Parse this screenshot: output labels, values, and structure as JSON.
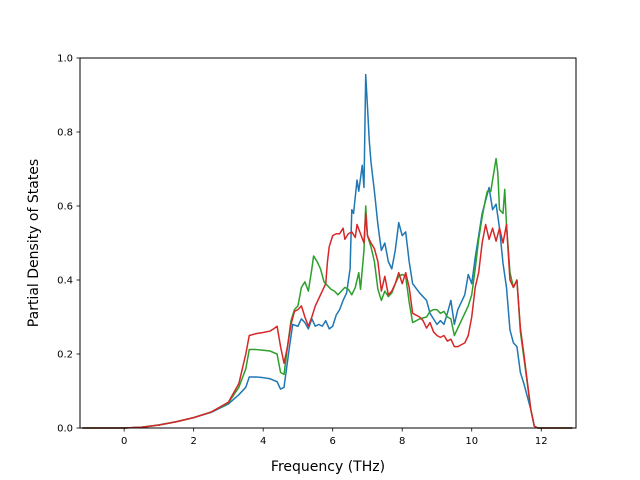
{
  "chart_data": {
    "type": "line",
    "title": "",
    "xlabel": "Frequency (THz)",
    "ylabel": "Partial Density of States",
    "xlim": [
      -1.27,
      13.0
    ],
    "ylim": [
      0.0,
      1.0
    ],
    "xticks": [
      0,
      2,
      4,
      6,
      8,
      10,
      12
    ],
    "yticks": [
      0.0,
      0.2,
      0.4,
      0.6,
      0.8,
      1.0
    ],
    "xtick_labels": [
      "0",
      "2",
      "4",
      "6",
      "8",
      "10",
      "12"
    ],
    "ytick_labels": [
      "0.0",
      "0.2",
      "0.4",
      "0.6",
      "0.8",
      "1.0"
    ],
    "grid": false,
    "legend": "none",
    "series": [
      {
        "color": "#1f77b4",
        "points": [
          [
            -1.2,
            0
          ],
          [
            -0.5,
            0
          ],
          [
            0,
            0
          ],
          [
            0.5,
            0.002
          ],
          [
            1,
            0.008
          ],
          [
            1.5,
            0.017
          ],
          [
            2,
            0.028
          ],
          [
            2.5,
            0.042
          ],
          [
            3,
            0.065
          ],
          [
            3.3,
            0.09
          ],
          [
            3.5,
            0.11
          ],
          [
            3.6,
            0.138
          ],
          [
            3.8,
            0.138
          ],
          [
            4,
            0.136
          ],
          [
            4.2,
            0.133
          ],
          [
            4.4,
            0.125
          ],
          [
            4.5,
            0.105
          ],
          [
            4.6,
            0.11
          ],
          [
            4.75,
            0.215
          ],
          [
            4.85,
            0.28
          ],
          [
            5.0,
            0.275
          ],
          [
            5.1,
            0.295
          ],
          [
            5.2,
            0.285
          ],
          [
            5.3,
            0.268
          ],
          [
            5.4,
            0.295
          ],
          [
            5.5,
            0.275
          ],
          [
            5.6,
            0.28
          ],
          [
            5.7,
            0.275
          ],
          [
            5.8,
            0.29
          ],
          [
            5.9,
            0.268
          ],
          [
            6.0,
            0.275
          ],
          [
            6.1,
            0.305
          ],
          [
            6.2,
            0.32
          ],
          [
            6.3,
            0.345
          ],
          [
            6.4,
            0.365
          ],
          [
            6.5,
            0.43
          ],
          [
            6.55,
            0.59
          ],
          [
            6.6,
            0.58
          ],
          [
            6.7,
            0.67
          ],
          [
            6.75,
            0.64
          ],
          [
            6.85,
            0.71
          ],
          [
            6.9,
            0.65
          ],
          [
            6.95,
            0.955
          ],
          [
            7.0,
            0.87
          ],
          [
            7.05,
            0.78
          ],
          [
            7.1,
            0.72
          ],
          [
            7.2,
            0.64
          ],
          [
            7.3,
            0.55
          ],
          [
            7.4,
            0.48
          ],
          [
            7.5,
            0.5
          ],
          [
            7.6,
            0.45
          ],
          [
            7.7,
            0.43
          ],
          [
            7.8,
            0.48
          ],
          [
            7.9,
            0.555
          ],
          [
            8.0,
            0.52
          ],
          [
            8.1,
            0.53
          ],
          [
            8.2,
            0.45
          ],
          [
            8.3,
            0.39
          ],
          [
            8.5,
            0.365
          ],
          [
            8.7,
            0.345
          ],
          [
            8.8,
            0.31
          ],
          [
            8.9,
            0.295
          ],
          [
            9.0,
            0.28
          ],
          [
            9.1,
            0.29
          ],
          [
            9.2,
            0.28
          ],
          [
            9.3,
            0.31
          ],
          [
            9.4,
            0.345
          ],
          [
            9.5,
            0.28
          ],
          [
            9.6,
            0.32
          ],
          [
            9.7,
            0.34
          ],
          [
            9.8,
            0.36
          ],
          [
            9.9,
            0.415
          ],
          [
            10.0,
            0.39
          ],
          [
            10.1,
            0.46
          ],
          [
            10.2,
            0.52
          ],
          [
            10.3,
            0.58
          ],
          [
            10.4,
            0.615
          ],
          [
            10.5,
            0.65
          ],
          [
            10.6,
            0.59
          ],
          [
            10.7,
            0.605
          ],
          [
            10.8,
            0.54
          ],
          [
            10.9,
            0.445
          ],
          [
            11.0,
            0.38
          ],
          [
            11.1,
            0.265
          ],
          [
            11.2,
            0.23
          ],
          [
            11.3,
            0.22
          ],
          [
            11.4,
            0.15
          ],
          [
            11.5,
            0.12
          ],
          [
            11.7,
            0.05
          ],
          [
            11.8,
            0.005
          ],
          [
            11.9,
            0
          ],
          [
            12.5,
            0
          ],
          [
            12.9,
            0
          ]
        ]
      },
      {
        "color": "#2ca02c",
        "points": [
          [
            -1.2,
            0
          ],
          [
            -0.5,
            0
          ],
          [
            0,
            0
          ],
          [
            0.5,
            0.002
          ],
          [
            1,
            0.008
          ],
          [
            1.5,
            0.017
          ],
          [
            2,
            0.028
          ],
          [
            2.5,
            0.043
          ],
          [
            3,
            0.068
          ],
          [
            3.3,
            0.11
          ],
          [
            3.5,
            0.16
          ],
          [
            3.6,
            0.212
          ],
          [
            3.8,
            0.212
          ],
          [
            4,
            0.21
          ],
          [
            4.2,
            0.208
          ],
          [
            4.4,
            0.2
          ],
          [
            4.5,
            0.15
          ],
          [
            4.6,
            0.145
          ],
          [
            4.7,
            0.22
          ],
          [
            4.8,
            0.29
          ],
          [
            4.9,
            0.32
          ],
          [
            5.0,
            0.33
          ],
          [
            5.1,
            0.38
          ],
          [
            5.2,
            0.395
          ],
          [
            5.3,
            0.37
          ],
          [
            5.4,
            0.43
          ],
          [
            5.45,
            0.465
          ],
          [
            5.55,
            0.45
          ],
          [
            5.65,
            0.43
          ],
          [
            5.75,
            0.395
          ],
          [
            5.85,
            0.385
          ],
          [
            5.95,
            0.375
          ],
          [
            6.05,
            0.37
          ],
          [
            6.15,
            0.36
          ],
          [
            6.25,
            0.37
          ],
          [
            6.35,
            0.38
          ],
          [
            6.45,
            0.375
          ],
          [
            6.55,
            0.36
          ],
          [
            6.65,
            0.38
          ],
          [
            6.75,
            0.42
          ],
          [
            6.8,
            0.375
          ],
          [
            6.9,
            0.48
          ],
          [
            6.95,
            0.6
          ],
          [
            7.0,
            0.52
          ],
          [
            7.1,
            0.49
          ],
          [
            7.2,
            0.45
          ],
          [
            7.3,
            0.375
          ],
          [
            7.4,
            0.345
          ],
          [
            7.5,
            0.37
          ],
          [
            7.6,
            0.355
          ],
          [
            7.7,
            0.365
          ],
          [
            7.8,
            0.39
          ],
          [
            7.9,
            0.41
          ],
          [
            8.0,
            0.415
          ],
          [
            8.1,
            0.41
          ],
          [
            8.2,
            0.34
          ],
          [
            8.3,
            0.285
          ],
          [
            8.5,
            0.295
          ],
          [
            8.7,
            0.3
          ],
          [
            8.8,
            0.315
          ],
          [
            8.9,
            0.32
          ],
          [
            9.0,
            0.32
          ],
          [
            9.1,
            0.31
          ],
          [
            9.2,
            0.315
          ],
          [
            9.3,
            0.3
          ],
          [
            9.4,
            0.295
          ],
          [
            9.5,
            0.25
          ],
          [
            9.6,
            0.27
          ],
          [
            9.7,
            0.29
          ],
          [
            9.8,
            0.31
          ],
          [
            9.9,
            0.33
          ],
          [
            10.0,
            0.36
          ],
          [
            10.1,
            0.43
          ],
          [
            10.2,
            0.51
          ],
          [
            10.3,
            0.57
          ],
          [
            10.4,
            0.62
          ],
          [
            10.45,
            0.64
          ],
          [
            10.55,
            0.64
          ],
          [
            10.6,
            0.67
          ],
          [
            10.7,
            0.728
          ],
          [
            10.75,
            0.69
          ],
          [
            10.8,
            0.59
          ],
          [
            10.9,
            0.58
          ],
          [
            10.95,
            0.645
          ],
          [
            11.0,
            0.55
          ],
          [
            11.1,
            0.42
          ],
          [
            11.2,
            0.38
          ],
          [
            11.3,
            0.4
          ],
          [
            11.4,
            0.26
          ],
          [
            11.5,
            0.19
          ],
          [
            11.7,
            0.05
          ],
          [
            11.8,
            0.005
          ],
          [
            11.9,
            0
          ],
          [
            12.5,
            0
          ],
          [
            12.9,
            0
          ]
        ]
      },
      {
        "color": "#d62728",
        "points": [
          [
            -1.2,
            0
          ],
          [
            -0.5,
            0
          ],
          [
            0,
            0
          ],
          [
            0.5,
            0.002
          ],
          [
            1,
            0.008
          ],
          [
            1.5,
            0.017
          ],
          [
            2,
            0.028
          ],
          [
            2.5,
            0.043
          ],
          [
            3,
            0.07
          ],
          [
            3.3,
            0.12
          ],
          [
            3.5,
            0.2
          ],
          [
            3.6,
            0.25
          ],
          [
            3.8,
            0.255
          ],
          [
            4,
            0.258
          ],
          [
            4.2,
            0.262
          ],
          [
            4.3,
            0.268
          ],
          [
            4.4,
            0.275
          ],
          [
            4.5,
            0.22
          ],
          [
            4.6,
            0.175
          ],
          [
            4.7,
            0.22
          ],
          [
            4.8,
            0.28
          ],
          [
            4.9,
            0.315
          ],
          [
            5.0,
            0.32
          ],
          [
            5.1,
            0.33
          ],
          [
            5.2,
            0.3
          ],
          [
            5.3,
            0.275
          ],
          [
            5.4,
            0.3
          ],
          [
            5.5,
            0.33
          ],
          [
            5.6,
            0.35
          ],
          [
            5.7,
            0.37
          ],
          [
            5.8,
            0.39
          ],
          [
            5.85,
            0.45
          ],
          [
            5.9,
            0.49
          ],
          [
            6.0,
            0.52
          ],
          [
            6.1,
            0.525
          ],
          [
            6.2,
            0.525
          ],
          [
            6.3,
            0.54
          ],
          [
            6.35,
            0.51
          ],
          [
            6.45,
            0.525
          ],
          [
            6.55,
            0.53
          ],
          [
            6.65,
            0.515
          ],
          [
            6.7,
            0.55
          ],
          [
            6.8,
            0.525
          ],
          [
            6.9,
            0.5
          ],
          [
            6.95,
            0.58
          ],
          [
            7.0,
            0.52
          ],
          [
            7.1,
            0.5
          ],
          [
            7.2,
            0.485
          ],
          [
            7.3,
            0.45
          ],
          [
            7.4,
            0.37
          ],
          [
            7.5,
            0.41
          ],
          [
            7.6,
            0.36
          ],
          [
            7.7,
            0.37
          ],
          [
            7.8,
            0.39
          ],
          [
            7.9,
            0.42
          ],
          [
            8.0,
            0.39
          ],
          [
            8.1,
            0.42
          ],
          [
            8.2,
            0.38
          ],
          [
            8.3,
            0.31
          ],
          [
            8.5,
            0.3
          ],
          [
            8.6,
            0.29
          ],
          [
            8.7,
            0.27
          ],
          [
            8.8,
            0.285
          ],
          [
            8.9,
            0.26
          ],
          [
            9.0,
            0.25
          ],
          [
            9.1,
            0.245
          ],
          [
            9.2,
            0.25
          ],
          [
            9.3,
            0.235
          ],
          [
            9.4,
            0.24
          ],
          [
            9.5,
            0.22
          ],
          [
            9.6,
            0.22
          ],
          [
            9.7,
            0.225
          ],
          [
            9.8,
            0.23
          ],
          [
            9.9,
            0.25
          ],
          [
            10.0,
            0.3
          ],
          [
            10.1,
            0.38
          ],
          [
            10.2,
            0.42
          ],
          [
            10.3,
            0.5
          ],
          [
            10.4,
            0.55
          ],
          [
            10.5,
            0.51
          ],
          [
            10.6,
            0.54
          ],
          [
            10.7,
            0.505
          ],
          [
            10.8,
            0.54
          ],
          [
            10.9,
            0.5
          ],
          [
            11.0,
            0.55
          ],
          [
            11.1,
            0.4
          ],
          [
            11.2,
            0.38
          ],
          [
            11.3,
            0.4
          ],
          [
            11.4,
            0.27
          ],
          [
            11.5,
            0.2
          ],
          [
            11.7,
            0.05
          ],
          [
            11.8,
            0.005
          ],
          [
            11.9,
            0
          ],
          [
            12.5,
            0
          ],
          [
            12.9,
            0
          ]
        ]
      }
    ]
  }
}
